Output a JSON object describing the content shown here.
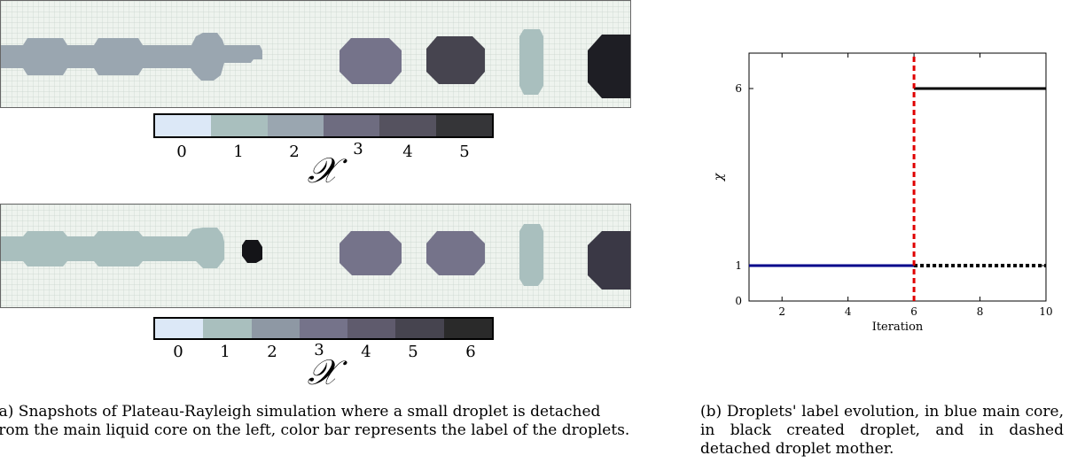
{
  "panel_a": {
    "colorbar_top": {
      "ticks": [
        "0",
        "1",
        "2",
        "3",
        "4",
        "5"
      ]
    },
    "colorbar_bottom": {
      "ticks": [
        "0",
        "1",
        "2",
        "3",
        "4",
        "5",
        "6"
      ]
    },
    "colorbar_label": "𝒳",
    "colors": {
      "0": "#dce8f7",
      "1": "#a9bfbe",
      "2": "#9aa6b0",
      "3": "#75738a",
      "4": "#5c5969",
      "5": "#46444f",
      "6": "#2a2a2a"
    },
    "caption": "(a) Snapshots of Plateau-Rayleigh simulation where a small droplet is detached from the main liquid core on the left, color bar represents the label of the droplets."
  },
  "chart_data": {
    "type": "line",
    "xlabel": "Iteration",
    "ylabel": "χ",
    "xlim": [
      1,
      10
    ],
    "ylim": [
      0,
      7
    ],
    "xticks": [
      "2",
      "4",
      "6",
      "8",
      "10"
    ],
    "yticks": [
      "0",
      "1",
      "6"
    ],
    "series": [
      {
        "style": "blue-solid",
        "x": [
          1,
          6
        ],
        "y": [
          1,
          1
        ],
        "color": "#00008b"
      },
      {
        "style": "black-solid",
        "x": [
          6,
          10
        ],
        "y": [
          6,
          6
        ],
        "color": "#000000"
      },
      {
        "style": "black-dashed",
        "x": [
          6,
          10
        ],
        "y": [
          1,
          1
        ],
        "color": "#000000"
      },
      {
        "style": "red-dashed-vertical",
        "x": [
          6,
          6
        ],
        "y": [
          0,
          7
        ],
        "color": "#e00000"
      }
    ],
    "grid": false
  },
  "panel_b": {
    "caption": "(b) Droplets' label evolution, in blue main core, in black created droplet, and in dashed detached droplet mother."
  }
}
